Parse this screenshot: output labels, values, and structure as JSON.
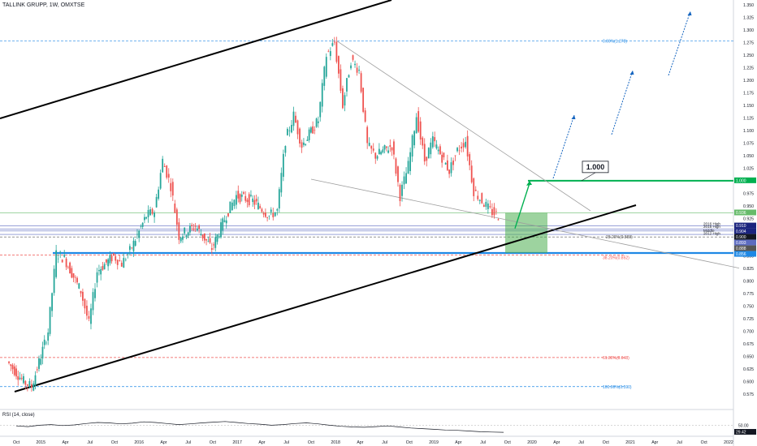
{
  "header": {
    "title": "TALLINK GRUPP, 1W, OMXTSE"
  },
  "rsi": {
    "label": "RSI (14, close)",
    "last_value": "29.42",
    "level_label": "50.00"
  },
  "colors": {
    "up": "#26a69a",
    "down": "#ef5350",
    "trend": "#000000",
    "target": "#00b050",
    "fib_blue": "#1e88e5",
    "fib_red": "#ef5350",
    "arrow": "#1565c0",
    "wedge": "#9e9e9e"
  },
  "chart_data": {
    "type": "candlestick",
    "title": "TALLINK GRUPP, 1W, OMXTSE",
    "x_tick_labels": [
      "Oct",
      "2015",
      "Apr",
      "Jul",
      "Oct",
      "2016",
      "Apr",
      "Jul",
      "Oct",
      "2017",
      "Apr",
      "Jul",
      "Oct",
      "2018",
      "Apr",
      "Jul",
      "Oct",
      "2019",
      "Apr",
      "Jul",
      "Oct",
      "2020",
      "Apr",
      "Jul",
      "Oct",
      "2021",
      "Apr",
      "Jul",
      "Oct",
      "2022"
    ],
    "y_tick_labels": [
      "1.350",
      "1.325",
      "1.300",
      "1.275",
      "1.250",
      "1.225",
      "1.200",
      "1.175",
      "1.150",
      "1.125",
      "1.100",
      "1.075",
      "1.050",
      "1.025",
      "1.000",
      "0.975",
      "0.950",
      "0.925",
      "0.900",
      "0.875",
      "0.850",
      "0.825",
      "0.800",
      "0.775",
      "0.750",
      "0.725",
      "0.700",
      "0.675",
      "0.650",
      "0.625",
      "0.600",
      "0.575"
    ],
    "ylim": [
      0.567,
      1.355
    ],
    "price_path": [
      {
        "date": "2014-09",
        "price": 0.64
      },
      {
        "date": "2014-11",
        "price": 0.6
      },
      {
        "date": "2014-12",
        "price": 0.59
      },
      {
        "date": "2015-02",
        "price": 0.7
      },
      {
        "date": "2015-03",
        "price": 0.855
      },
      {
        "date": "2015-04",
        "price": 0.845
      },
      {
        "date": "2015-06",
        "price": 0.78
      },
      {
        "date": "2015-07",
        "price": 0.715
      },
      {
        "date": "2015-08",
        "price": 0.82
      },
      {
        "date": "2015-10",
        "price": 0.85
      },
      {
        "date": "2015-11",
        "price": 0.835
      },
      {
        "date": "2015-12",
        "price": 0.86
      },
      {
        "date": "2016-02",
        "price": 0.93
      },
      {
        "date": "2016-03",
        "price": 0.94
      },
      {
        "date": "2016-04",
        "price": 1.04
      },
      {
        "date": "2016-05",
        "price": 0.99
      },
      {
        "date": "2016-06",
        "price": 0.89
      },
      {
        "date": "2016-08",
        "price": 0.91
      },
      {
        "date": "2016-10",
        "price": 0.865
      },
      {
        "date": "2016-12",
        "price": 0.94
      },
      {
        "date": "2017-01",
        "price": 0.97
      },
      {
        "date": "2017-03",
        "price": 0.96
      },
      {
        "date": "2017-05",
        "price": 0.93
      },
      {
        "date": "2017-06",
        "price": 0.94
      },
      {
        "date": "2017-07",
        "price": 1.08
      },
      {
        "date": "2017-08",
        "price": 1.13
      },
      {
        "date": "2017-09",
        "price": 1.07
      },
      {
        "date": "2017-11",
        "price": 1.12
      },
      {
        "date": "2017-12",
        "price": 1.25
      },
      {
        "date": "2018-01",
        "price": 1.275
      },
      {
        "date": "2018-02",
        "price": 1.15
      },
      {
        "date": "2018-03",
        "price": 1.24
      },
      {
        "date": "2018-04",
        "price": 1.22
      },
      {
        "date": "2018-05",
        "price": 1.07
      },
      {
        "date": "2018-06",
        "price": 1.05
      },
      {
        "date": "2018-08",
        "price": 1.07
      },
      {
        "date": "2018-09",
        "price": 0.97
      },
      {
        "date": "2018-10",
        "price": 1.03
      },
      {
        "date": "2018-11",
        "price": 1.13
      },
      {
        "date": "2018-12",
        "price": 1.04
      },
      {
        "date": "2019-01",
        "price": 1.08
      },
      {
        "date": "2019-03",
        "price": 1.02
      },
      {
        "date": "2019-04",
        "price": 1.06
      },
      {
        "date": "2019-05",
        "price": 1.08
      },
      {
        "date": "2019-06",
        "price": 0.98
      },
      {
        "date": "2019-07",
        "price": 0.96
      },
      {
        "date": "2019-08",
        "price": 0.94
      },
      {
        "date": "2019-09",
        "price": 0.93
      }
    ],
    "horizontal_levels": [
      {
        "name": "target",
        "value": 1.0,
        "label": "1.000"
      },
      {
        "name": "fib-0",
        "value": 1.278,
        "label": "0.00%(1.278)"
      },
      {
        "name": "fib-28",
        "value": 0.888,
        "label": "28.20%(0.888)"
      },
      {
        "name": "fib-38",
        "value": 0.852,
        "label": "38.20%(0.852)"
      },
      {
        "name": "fib-61",
        "value": 0.648,
        "label": "61.80%(0.648)"
      },
      {
        "name": "fib-100",
        "value": 0.59,
        "label": "100.00%(0.590)"
      },
      {
        "name": "support",
        "value": 0.856,
        "label": "0.856"
      },
      {
        "name": "green-ref",
        "value": 0.936,
        "label": "0.936"
      },
      {
        "name": "2016-high",
        "value": 0.91,
        "label": "2016 High"
      },
      {
        "name": "2015-high",
        "value": 0.904,
        "label": "2015 High"
      },
      {
        "name": "middle",
        "value": 0.9,
        "label": "Middle"
      },
      {
        "name": "2012-high",
        "value": 0.893,
        "label": "2012 High"
      }
    ],
    "right_axis_badges": [
      "1.000",
      "0.936",
      "0.910",
      "0.904",
      "0.900",
      "0.893",
      "0.888",
      "0.856"
    ],
    "callout_label": "1.000",
    "annotation_labels": [
      "2016 High",
      "2015 High",
      "Middle",
      "2012 High"
    ],
    "annotations": [
      {
        "type": "trend-channel",
        "desc": "ascending channel"
      },
      {
        "type": "falling-wedge",
        "from": "2018-01",
        "to": "2019-09"
      },
      {
        "type": "target-box",
        "from_price": 0.856,
        "to_price": 0.936
      },
      {
        "type": "projection-arrows",
        "count": 4
      }
    ],
    "grid": false,
    "legend": "none"
  }
}
